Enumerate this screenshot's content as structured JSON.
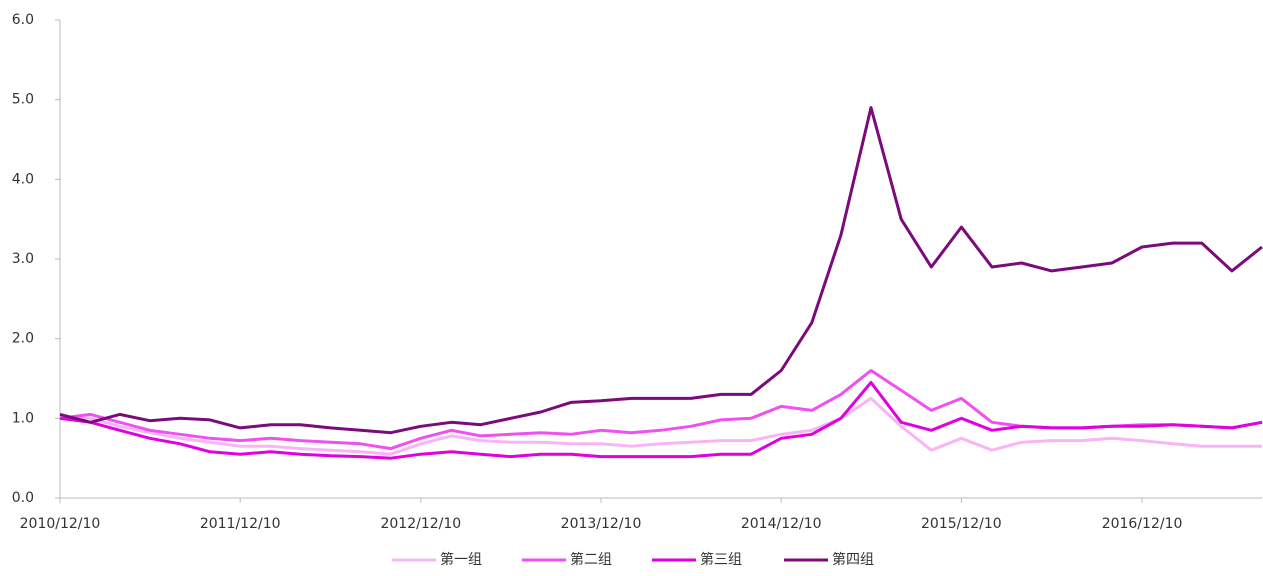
{
  "chart_data": {
    "type": "line",
    "x": [
      "2010/12/10",
      "2011/02/10",
      "2011/04/10",
      "2011/06/10",
      "2011/08/10",
      "2011/10/10",
      "2011/12/10",
      "2012/02/10",
      "2012/04/10",
      "2012/06/10",
      "2012/08/10",
      "2012/10/10",
      "2012/12/10",
      "2013/02/10",
      "2013/04/10",
      "2013/06/10",
      "2013/08/10",
      "2013/10/10",
      "2013/12/10",
      "2014/02/10",
      "2014/04/10",
      "2014/06/10",
      "2014/08/10",
      "2014/10/10",
      "2014/12/10",
      "2015/02/10",
      "2015/04/10",
      "2015/06/10",
      "2015/08/10",
      "2015/10/10",
      "2015/12/10",
      "2016/02/10",
      "2016/04/10",
      "2016/06/10",
      "2016/08/10",
      "2016/10/10",
      "2016/12/10",
      "2017/02/10",
      "2017/04/10",
      "2017/06/10",
      "2017/08/10"
    ],
    "series": [
      {
        "name": "第一组",
        "color": "#f8b4f4",
        "values": [
          1.0,
          1.0,
          0.9,
          0.82,
          0.75,
          0.7,
          0.65,
          0.65,
          0.62,
          0.6,
          0.58,
          0.55,
          0.68,
          0.78,
          0.72,
          0.7,
          0.7,
          0.68,
          0.68,
          0.65,
          0.68,
          0.7,
          0.72,
          0.72,
          0.8,
          0.85,
          1.0,
          1.25,
          0.9,
          0.6,
          0.75,
          0.6,
          0.7,
          0.72,
          0.72,
          0.75,
          0.72,
          0.68,
          0.65,
          0.65,
          0.65
        ]
      },
      {
        "name": "第二组",
        "color": "#f050f0",
        "values": [
          1.0,
          1.05,
          0.95,
          0.85,
          0.8,
          0.75,
          0.72,
          0.75,
          0.72,
          0.7,
          0.68,
          0.62,
          0.75,
          0.85,
          0.78,
          0.8,
          0.82,
          0.8,
          0.85,
          0.82,
          0.85,
          0.9,
          0.98,
          1.0,
          1.15,
          1.1,
          1.3,
          1.6,
          1.35,
          1.1,
          1.25,
          0.95,
          0.9,
          0.88,
          0.88,
          0.9,
          0.92,
          0.92,
          0.9,
          0.88,
          0.95
        ]
      },
      {
        "name": "第三组",
        "color": "#e000e0",
        "values": [
          1.0,
          0.95,
          0.85,
          0.75,
          0.68,
          0.58,
          0.55,
          0.58,
          0.55,
          0.53,
          0.52,
          0.5,
          0.55,
          0.58,
          0.55,
          0.52,
          0.55,
          0.55,
          0.52,
          0.52,
          0.52,
          0.52,
          0.55,
          0.55,
          0.75,
          0.8,
          1.0,
          1.45,
          0.95,
          0.85,
          1.0,
          0.85,
          0.9,
          0.88,
          0.88,
          0.9,
          0.9,
          0.92,
          0.9,
          0.88,
          0.95
        ]
      },
      {
        "name": "第四组",
        "color": "#7b0a7b",
        "values": [
          1.05,
          0.95,
          1.05,
          0.97,
          1.0,
          0.98,
          0.88,
          0.92,
          0.92,
          0.88,
          0.85,
          0.82,
          0.9,
          0.95,
          0.92,
          1.0,
          1.08,
          1.2,
          1.22,
          1.25,
          1.25,
          1.25,
          1.3,
          1.3,
          1.6,
          2.2,
          3.3,
          4.9,
          3.5,
          2.9,
          3.4,
          2.9,
          2.95,
          2.85,
          2.9,
          2.95,
          3.15,
          3.2,
          3.2,
          2.85,
          3.15
        ]
      }
    ],
    "xlim": [
      "2010/12/10",
      "2017/08/10"
    ],
    "xticks": [
      "2010/12/10",
      "2011/12/10",
      "2012/12/10",
      "2013/12/10",
      "2014/12/10",
      "2015/12/10",
      "2016/12/10"
    ],
    "ylim": [
      0,
      6
    ],
    "yticks": [
      {
        "value": 0,
        "label": "0.0"
      },
      {
        "value": 1,
        "label": "1.0"
      },
      {
        "value": 2,
        "label": "2.0"
      },
      {
        "value": 3,
        "label": "3.0"
      },
      {
        "value": 4,
        "label": "4.0"
      },
      {
        "value": 5,
        "label": "5.0"
      },
      {
        "value": 6,
        "label": "6.0"
      }
    ],
    "grid": false,
    "legend": "bottom"
  }
}
